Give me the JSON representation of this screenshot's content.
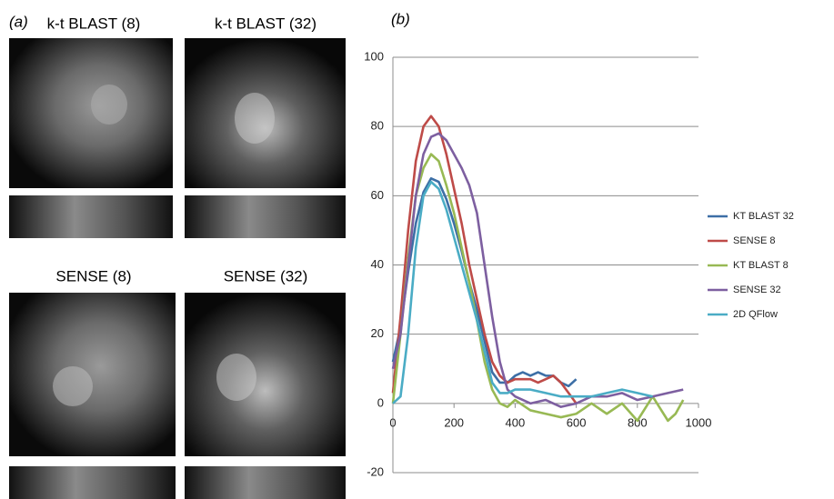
{
  "panel_a": {
    "label": "(a)",
    "captions": [
      "k-t BLAST (8)",
      "k-t BLAST (32)",
      "SENSE (8)",
      "SENSE (32)"
    ]
  },
  "chart_data": {
    "type": "line",
    "panel_label": "(b)",
    "xlim": [
      0,
      1000
    ],
    "xticks": [
      0,
      200,
      400,
      600,
      800,
      1000
    ],
    "ylim": [
      -20,
      100
    ],
    "yticks": [
      -20,
      0,
      20,
      40,
      60,
      80,
      100
    ],
    "grid": true,
    "legend": "right",
    "series": [
      {
        "name": "KT BLAST 32",
        "color": "#3d6fa6",
        "x": [
          0,
          25,
          50,
          75,
          100,
          125,
          150,
          175,
          200,
          225,
          250,
          275,
          300,
          325,
          350,
          375,
          400,
          425,
          450,
          475,
          500,
          525,
          550,
          575,
          600
        ],
        "values": [
          12,
          22,
          38,
          52,
          61,
          65,
          64,
          59,
          52,
          44,
          35,
          27,
          18,
          9,
          6,
          6,
          8,
          9,
          8,
          9,
          8,
          8,
          6,
          5,
          7
        ]
      },
      {
        "name": "SENSE 8",
        "color": "#be4b48",
        "x": [
          0,
          25,
          50,
          75,
          100,
          125,
          150,
          175,
          200,
          225,
          250,
          275,
          300,
          325,
          350,
          375,
          400,
          425,
          450,
          475,
          500,
          525,
          550,
          575,
          600
        ],
        "values": [
          3,
          25,
          50,
          70,
          80,
          83,
          80,
          72,
          62,
          52,
          40,
          30,
          20,
          12,
          8,
          6,
          7,
          7,
          7,
          6,
          7,
          8,
          6,
          3,
          0
        ]
      },
      {
        "name": "KT BLAST 8",
        "color": "#98b954",
        "x": [
          0,
          25,
          50,
          75,
          100,
          125,
          150,
          175,
          200,
          225,
          250,
          275,
          300,
          325,
          350,
          375,
          400,
          450,
          500,
          550,
          600,
          650,
          700,
          750,
          800,
          850,
          900,
          925,
          950
        ],
        "values": [
          0,
          20,
          42,
          60,
          68,
          72,
          70,
          63,
          55,
          45,
          35,
          24,
          12,
          4,
          0,
          -1,
          1,
          -2,
          -3,
          -4,
          -3,
          0,
          -3,
          0,
          -5,
          2,
          -5,
          -3,
          1
        ]
      },
      {
        "name": "SENSE 32",
        "color": "#7d5fa0",
        "x": [
          0,
          25,
          50,
          75,
          100,
          125,
          150,
          175,
          200,
          225,
          250,
          275,
          300,
          325,
          350,
          375,
          400,
          450,
          500,
          550,
          600,
          650,
          700,
          750,
          800,
          850,
          900,
          950
        ],
        "values": [
          10,
          20,
          40,
          60,
          72,
          77,
          78,
          76,
          72,
          68,
          63,
          55,
          40,
          25,
          12,
          4,
          2,
          0,
          1,
          -1,
          0,
          2,
          2,
          3,
          1,
          2,
          3,
          4
        ]
      },
      {
        "name": "2D QFlow",
        "color": "#4aacc5",
        "x": [
          0,
          25,
          50,
          75,
          100,
          125,
          150,
          175,
          200,
          225,
          250,
          275,
          300,
          325,
          350,
          375,
          400,
          450,
          500,
          550,
          600,
          650,
          700,
          750,
          800,
          850
        ],
        "values": [
          0,
          2,
          20,
          45,
          60,
          64,
          62,
          56,
          48,
          40,
          32,
          24,
          15,
          6,
          3,
          3,
          4,
          4,
          3,
          2,
          2,
          2,
          3,
          4,
          3,
          2
        ]
      }
    ]
  }
}
